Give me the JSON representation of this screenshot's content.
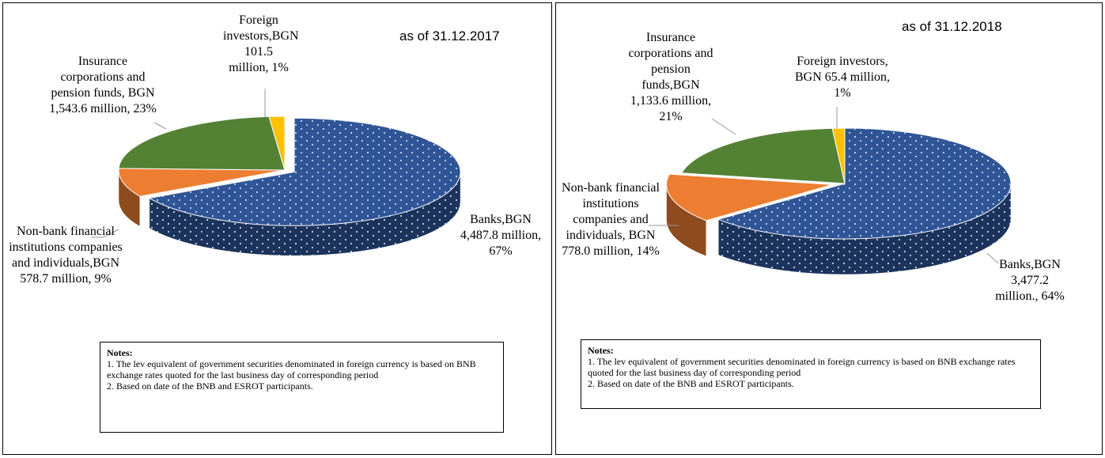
{
  "chart_data": [
    {
      "type": "pie",
      "title": "as of 31.12.2017",
      "values": [
        4487.8,
        578.7,
        1543.6,
        101.5
      ],
      "value_labels": [
        "Banks,BGN 4,487.8 million, 67%",
        "Non-bank financial institutions companies and individuals,BGN 578.7 million, 9%",
        "Insurance corporations and pension funds, BGN 1,543.6 million, 23%",
        "Foreign investors,BGN 101.5 million, 1%"
      ],
      "colors": [
        "#2f5597",
        "#ed7d31",
        "#548235",
        "#ffc000"
      ],
      "notes": {
        "title": "Notes:",
        "items": [
          "1. The lev equivalent of government securities denominated in foreign currency is based on BNB exchange rates quoted for the last business day of corresponding period",
          "2. Based on date of the BNB and ESROT participants."
        ]
      }
    },
    {
      "type": "pie",
      "title": "as of 31.12.2018",
      "values": [
        3477.2,
        778.0,
        1133.6,
        65.4
      ],
      "value_labels": [
        "Banks,BGN 3,477.2 million., 64%",
        "Non-bank financial institutions companies and individuals, BGN 778.0 million, 14%",
        "Insurance corporations and pension funds,BGN 1,133.6 million, 21%",
        "Foreign investors, BGN 65.4 million, 1%"
      ],
      "colors": [
        "#2f5597",
        "#ed7d31",
        "#548235",
        "#ffc000"
      ],
      "notes": {
        "title": "Notes:",
        "items": [
          "1. The lev equivalent of government securities denominated in foreign currency is based on BNB exchange rates quoted for the last business day of corresponding period",
          "2. Based on date of the BNB and ESROT participants."
        ]
      }
    }
  ]
}
